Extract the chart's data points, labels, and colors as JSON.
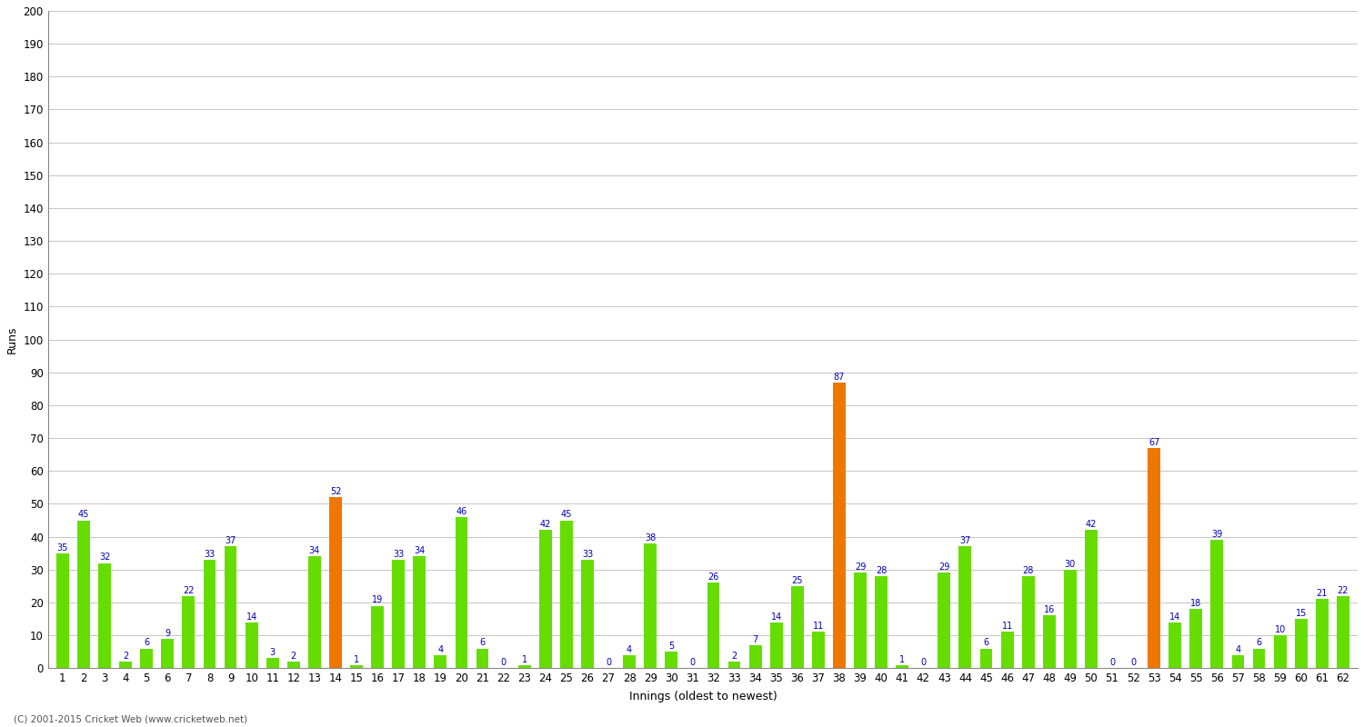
{
  "values": [
    35,
    45,
    32,
    2,
    6,
    9,
    22,
    33,
    37,
    14,
    3,
    2,
    34,
    52,
    1,
    19,
    33,
    34,
    4,
    46,
    6,
    0,
    1,
    42,
    45,
    33,
    0,
    4,
    38,
    5,
    0,
    26,
    2,
    7,
    14,
    25,
    11,
    87,
    29,
    28,
    1,
    0,
    29,
    37,
    6,
    11,
    28,
    16,
    30,
    42,
    0,
    0,
    67,
    14,
    18,
    39,
    4,
    6,
    10,
    15,
    21,
    22
  ],
  "innings_labels": [
    "1",
    "2",
    "3",
    "4",
    "5",
    "6",
    "7",
    "8",
    "9",
    "10",
    "11",
    "12",
    "13",
    "14",
    "15",
    "16",
    "17",
    "18",
    "19",
    "20",
    "21",
    "22",
    "23",
    "24",
    "25",
    "26",
    "27",
    "28",
    "29",
    "30",
    "31",
    "32",
    "33",
    "34",
    "35",
    "36",
    "37",
    "38",
    "39",
    "40",
    "41",
    "42",
    "43",
    "44",
    "45",
    "46",
    "47",
    "48",
    "49",
    "50",
    "51",
    "52",
    "53",
    "54",
    "55",
    "56",
    "57",
    "58",
    "59",
    "60",
    "61",
    "62"
  ],
  "orange_indices": [
    13,
    37,
    52
  ],
  "bar_color_green": "#66dd00",
  "bar_color_orange": "#ee7700",
  "ylabel": "Runs",
  "xlabel": "Innings (oldest to newest)",
  "ylim": [
    0,
    200
  ],
  "yticks": [
    0,
    10,
    20,
    30,
    40,
    50,
    60,
    70,
    80,
    90,
    100,
    110,
    120,
    130,
    140,
    150,
    160,
    170,
    180,
    190,
    200
  ],
  "bg_color": "#ffffff",
  "grid_color": "#bbbbbb",
  "label_color": "#0000bb",
  "label_fontsize": 7.0,
  "tick_fontsize": 8.5,
  "axis_label_fontsize": 9,
  "footer": "(C) 2001-2015 Cricket Web (www.cricketweb.net)"
}
